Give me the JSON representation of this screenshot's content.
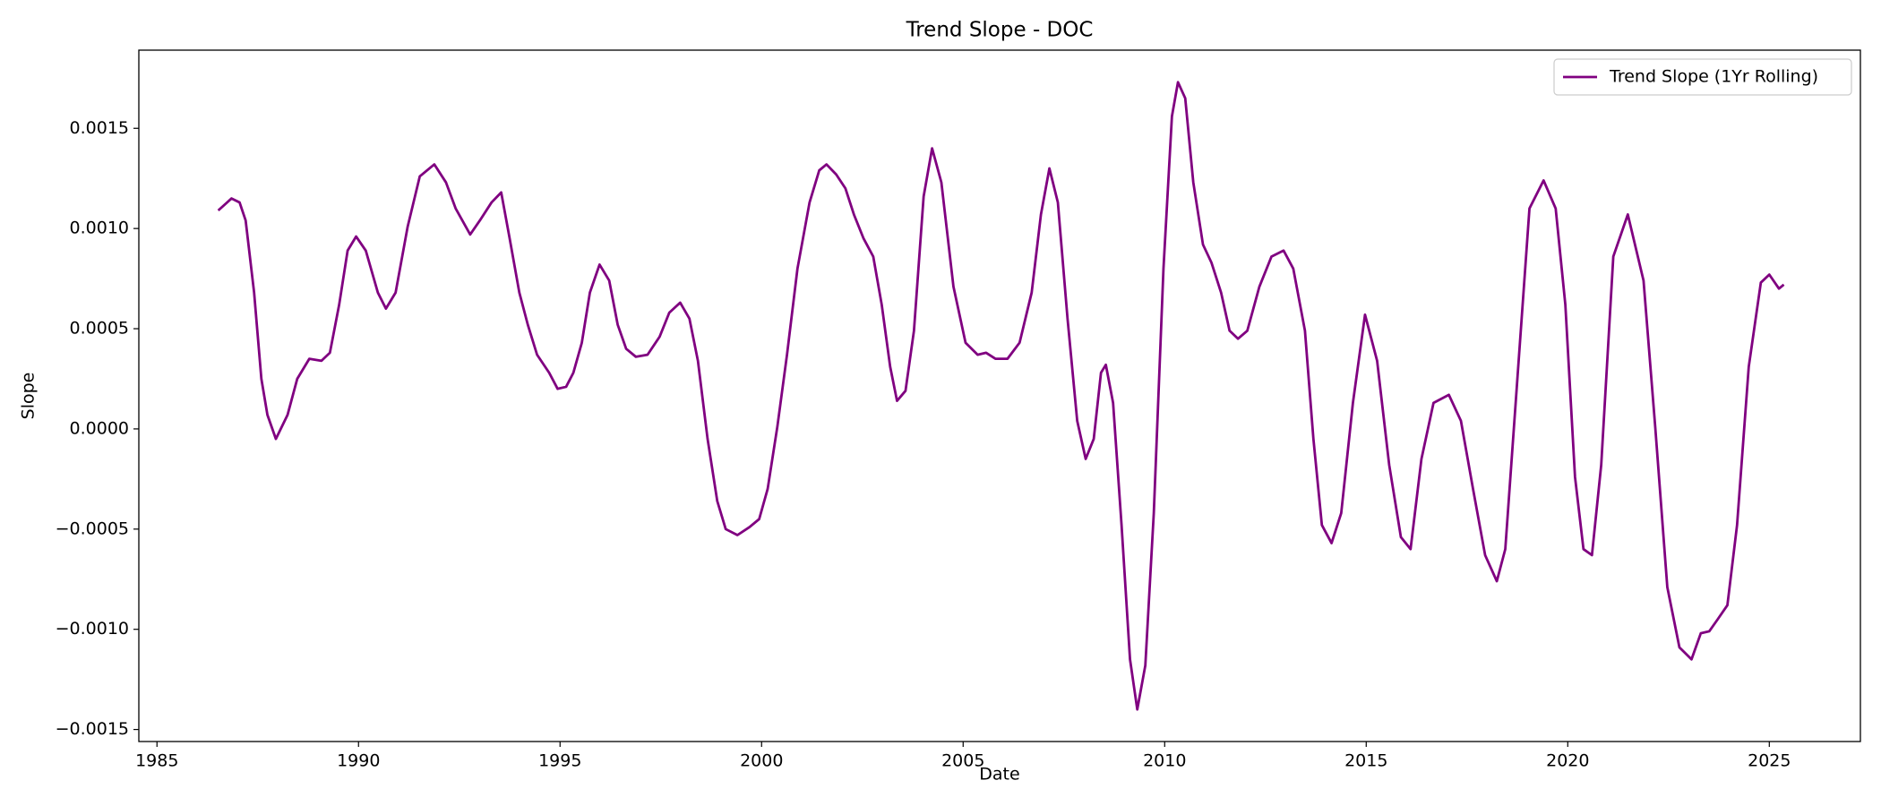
{
  "chart_data": {
    "type": "line",
    "title": "Trend Slope - DOC",
    "x_label": "Date",
    "y_label": "Slope",
    "x": [
      1986.52,
      1986.85,
      1987.05,
      1987.2,
      1987.41,
      1987.59,
      1987.74,
      1987.95,
      1988.24,
      1988.48,
      1988.78,
      1989.08,
      1989.29,
      1989.52,
      1989.73,
      1989.94,
      1990.18,
      1990.48,
      1990.68,
      1990.92,
      1991.22,
      1991.52,
      1991.88,
      1992.17,
      1992.41,
      1992.77,
      1993.01,
      1993.3,
      1993.54,
      1993.75,
      1993.99,
      1994.2,
      1994.43,
      1994.73,
      1994.94,
      1995.15,
      1995.33,
      1995.54,
      1995.74,
      1995.98,
      1996.22,
      1996.43,
      1996.64,
      1996.88,
      1997.17,
      1997.47,
      1997.71,
      1997.98,
      1998.21,
      1998.42,
      1998.66,
      1998.9,
      1999.11,
      1999.4,
      1999.7,
      1999.94,
      2000.15,
      2000.39,
      2000.63,
      2000.89,
      2001.19,
      2001.43,
      2001.61,
      2001.85,
      2002.08,
      2002.29,
      2002.53,
      2002.77,
      2002.98,
      2003.19,
      2003.36,
      2003.57,
      2003.78,
      2004.02,
      2004.23,
      2004.46,
      2004.76,
      2005.06,
      2005.36,
      2005.57,
      2005.8,
      2006.1,
      2006.4,
      2006.7,
      2006.93,
      2007.14,
      2007.35,
      2007.59,
      2007.83,
      2008.04,
      2008.24,
      2008.42,
      2008.54,
      2008.72,
      2008.93,
      2009.14,
      2009.32,
      2009.52,
      2009.73,
      2009.97,
      2010.18,
      2010.33,
      2010.51,
      2010.71,
      2010.95,
      2011.16,
      2011.4,
      2011.61,
      2011.82,
      2012.05,
      2012.35,
      2012.65,
      2012.95,
      2013.19,
      2013.48,
      2013.69,
      2013.9,
      2014.14,
      2014.38,
      2014.67,
      2014.97,
      2015.27,
      2015.57,
      2015.86,
      2016.1,
      2016.37,
      2016.67,
      2017.05,
      2017.35,
      2017.65,
      2017.95,
      2018.24,
      2018.45,
      2018.75,
      2019.05,
      2019.4,
      2019.7,
      2019.94,
      2020.18,
      2020.39,
      2020.6,
      2020.83,
      2021.13,
      2021.49,
      2021.88,
      2022.17,
      2022.47,
      2022.77,
      2023.07,
      2023.3,
      2023.51,
      2023.72,
      2023.96,
      2024.2,
      2024.49,
      2024.79,
      2025,
      2025.24,
      2025.36
    ],
    "series": [
      {
        "name": "Trend Slope (1Yr Rolling)",
        "color": "#800080",
        "values": [
          0.00109,
          0.00115,
          0.00113,
          0.00104,
          0.00068,
          0.00025,
          7e-05,
          -5e-05,
          7e-05,
          0.00025,
          0.00035,
          0.00034,
          0.00038,
          0.00062,
          0.00089,
          0.00096,
          0.00089,
          0.00068,
          0.0006,
          0.00068,
          0.00101,
          0.00126,
          0.00132,
          0.00123,
          0.0011,
          0.00097,
          0.00104,
          0.00113,
          0.00118,
          0.00095,
          0.00068,
          0.00052,
          0.00037,
          0.00028,
          0.0002,
          0.00021,
          0.00028,
          0.00043,
          0.00068,
          0.00082,
          0.00074,
          0.00052,
          0.0004,
          0.00036,
          0.00037,
          0.00046,
          0.00058,
          0.00063,
          0.00055,
          0.00034,
          -5e-05,
          -0.00036,
          -0.0005,
          -0.00053,
          -0.00049,
          -0.00045,
          -0.0003,
          1e-05,
          0.00037,
          0.0008,
          0.00113,
          0.00129,
          0.00132,
          0.00127,
          0.0012,
          0.00107,
          0.00095,
          0.00086,
          0.00062,
          0.00031,
          0.00014,
          0.00019,
          0.00049,
          0.00116,
          0.0014,
          0.00123,
          0.00071,
          0.00043,
          0.00037,
          0.00038,
          0.00035,
          0.00035,
          0.00043,
          0.00068,
          0.00107,
          0.0013,
          0.00113,
          0.00055,
          4e-05,
          -0.00015,
          -5e-05,
          0.00028,
          0.00032,
          0.00013,
          -0.00048,
          -0.00115,
          -0.0014,
          -0.00118,
          -0.00042,
          0.0008,
          0.00156,
          0.00173,
          0.00165,
          0.00123,
          0.00092,
          0.00083,
          0.00068,
          0.00049,
          0.00045,
          0.00049,
          0.00071,
          0.00086,
          0.00089,
          0.0008,
          0.00049,
          -5e-05,
          -0.00048,
          -0.00057,
          -0.00042,
          0.00013,
          0.00057,
          0.00034,
          -0.00018,
          -0.00054,
          -0.0006,
          -0.00015,
          0.00013,
          0.00017,
          4e-05,
          -0.0003,
          -0.00063,
          -0.00076,
          -0.0006,
          0.00025,
          0.0011,
          0.00124,
          0.0011,
          0.00062,
          -0.00024,
          -0.0006,
          -0.00063,
          -0.00018,
          0.00086,
          0.00107,
          0.00074,
          1e-05,
          -0.00079,
          -0.00109,
          -0.00115,
          -0.00102,
          -0.00101,
          -0.00095,
          -0.00088,
          -0.00048,
          0.00031,
          0.00073,
          0.00077,
          0.0007,
          0.00072
        ]
      }
    ],
    "xlim": [
      1984.55,
      2027.26
    ],
    "xticks": [
      1985,
      1990,
      1995,
      2000,
      2005,
      2010,
      2015,
      2020,
      2025
    ],
    "ylim": [
      -0.00156,
      0.00189
    ],
    "yticks": [
      {
        "value": -0.0015,
        "label": "−0.0015"
      },
      {
        "value": -0.001,
        "label": "−0.0010"
      },
      {
        "value": -0.0005,
        "label": "−0.0005"
      },
      {
        "value": 0,
        "label": "0.0000"
      },
      0.0005,
      {
        "value": 0.001,
        "label": "0.0010"
      },
      0.0015
    ],
    "grid": false,
    "legend": "upper right"
  }
}
